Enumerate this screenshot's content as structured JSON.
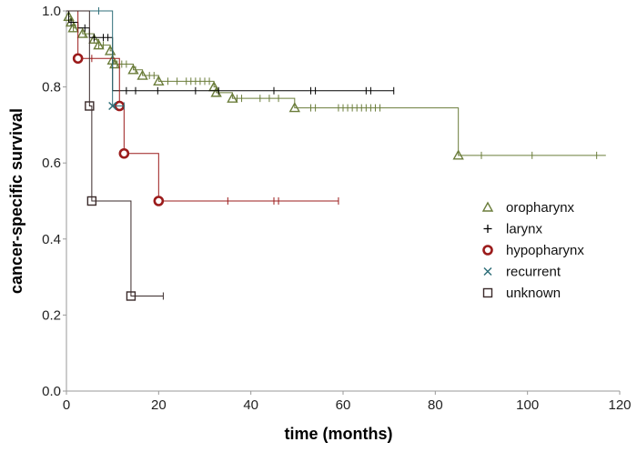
{
  "chart_data": {
    "type": "line",
    "title": "",
    "xlabel": "time (months)",
    "ylabel": "cancer-specific survival",
    "xlim": [
      0,
      120
    ],
    "ylim": [
      0,
      1
    ],
    "x_ticks": [
      "0",
      "20",
      "40",
      "60",
      "80",
      "100",
      "120"
    ],
    "y_ticks": [
      "0.0",
      "0.2",
      "0.4",
      "0.6",
      "0.8",
      "1.0"
    ],
    "grid": false,
    "legend_position": "right",
    "series": [
      {
        "name": "oropharynx",
        "color": "#6b7d3b",
        "marker": "triangle-icon",
        "steps": [
          [
            0,
            1.0
          ],
          [
            0.5,
            0.985
          ],
          [
            1.0,
            0.97
          ],
          [
            1.5,
            0.955
          ],
          [
            3.5,
            0.94
          ],
          [
            6.0,
            0.925
          ],
          [
            7.0,
            0.91
          ],
          [
            9.5,
            0.895
          ],
          [
            10.0,
            0.87
          ],
          [
            10.5,
            0.86
          ],
          [
            14.5,
            0.845
          ],
          [
            16.5,
            0.83
          ],
          [
            20.0,
            0.815
          ],
          [
            32.0,
            0.8
          ],
          [
            32.5,
            0.785
          ],
          [
            36.0,
            0.77
          ],
          [
            49.5,
            0.745
          ],
          [
            85.0,
            0.62
          ]
        ],
        "end": 117,
        "events": [
          [
            0.5,
            0.985
          ],
          [
            1.0,
            0.97
          ],
          [
            1.5,
            0.955
          ],
          [
            3.5,
            0.94
          ],
          [
            6.0,
            0.925
          ],
          [
            7.0,
            0.91
          ],
          [
            9.5,
            0.895
          ],
          [
            10.0,
            0.87
          ],
          [
            10.5,
            0.86
          ],
          [
            14.5,
            0.845
          ],
          [
            16.5,
            0.83
          ],
          [
            20.0,
            0.815
          ],
          [
            32.0,
            0.8
          ],
          [
            32.5,
            0.785
          ],
          [
            36.0,
            0.77
          ],
          [
            49.5,
            0.745
          ],
          [
            85.0,
            0.62
          ]
        ],
        "censored": [
          1.5,
          2.5,
          4,
          5,
          6,
          7,
          8,
          11,
          12,
          13,
          15,
          18,
          19,
          22,
          24,
          26,
          27,
          28,
          29,
          30,
          31,
          33,
          37,
          38,
          42,
          44,
          46,
          53,
          54,
          59,
          60,
          61,
          62,
          63,
          64,
          65,
          66,
          67,
          68,
          90,
          101,
          115
        ]
      },
      {
        "name": "larynx",
        "color": "#000000",
        "marker": "plus-icon",
        "steps": [
          [
            0,
            1.0
          ],
          [
            0.5,
            0.97
          ],
          [
            2.5,
            0.955
          ],
          [
            5.0,
            0.93
          ],
          [
            10.0,
            0.79
          ]
        ],
        "end": 71,
        "events": [],
        "censored": [
          1,
          4,
          6,
          8,
          9,
          13,
          15,
          19.8,
          28,
          33,
          45,
          53,
          54,
          65,
          66,
          71
        ]
      },
      {
        "name": "hypopharynx",
        "color": "#9b1b1b",
        "marker": "circle-icon",
        "steps": [
          [
            0,
            1.0
          ],
          [
            2.5,
            0.875
          ],
          [
            11.5,
            0.75
          ],
          [
            12.5,
            0.625
          ],
          [
            20.0,
            0.5
          ]
        ],
        "end": 59,
        "events": [
          [
            2.5,
            0.875
          ],
          [
            11.5,
            0.75
          ],
          [
            12.5,
            0.625
          ],
          [
            20.0,
            0.5
          ]
        ],
        "censored": [
          5.5,
          35,
          45,
          46,
          59
        ]
      },
      {
        "name": "recurrent",
        "color": "#2f6f7a",
        "marker": "x-icon",
        "steps": [
          [
            0,
            1.0
          ],
          [
            10.0,
            0.75
          ]
        ],
        "end": 12.5,
        "events": [
          [
            10.0,
            0.75
          ]
        ],
        "censored": [
          7,
          12.5
        ]
      },
      {
        "name": "unknown",
        "color": "#3a2a2a",
        "marker": "square-icon",
        "steps": [
          [
            0,
            1.0
          ],
          [
            5.0,
            0.75
          ],
          [
            5.5,
            0.5
          ],
          [
            14.0,
            0.25
          ]
        ],
        "end": 21,
        "events": [
          [
            5.0,
            0.75
          ],
          [
            5.5,
            0.5
          ],
          [
            14.0,
            0.25
          ]
        ],
        "censored": [
          21
        ]
      }
    ]
  }
}
